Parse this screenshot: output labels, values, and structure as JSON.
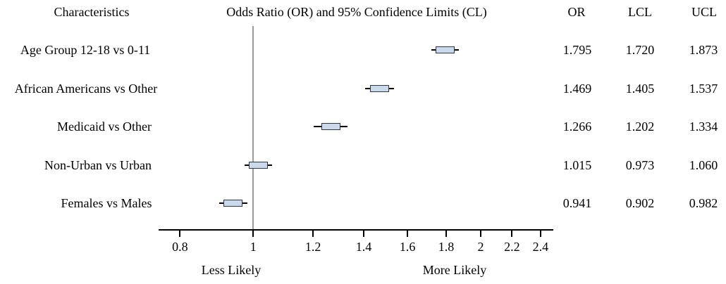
{
  "header": {
    "characteristics": "Characteristics",
    "plot_title": "Odds Ratio (OR) and 95% Confidence Limits (CL)",
    "columns": {
      "or": "OR",
      "lcl": "LCL",
      "ucl": "UCL"
    }
  },
  "chart_data": {
    "type": "forest",
    "x_scale": "log",
    "x_ticks": [
      "0.8",
      "1",
      "1.2",
      "1.4",
      "1.6",
      "1.8",
      "2",
      "2.2",
      "2.4"
    ],
    "xlim": [
      0.72,
      2.55
    ],
    "reference_line": 1,
    "grid": false,
    "annotations": {
      "left": "Less Likely",
      "right": "More Likely"
    },
    "rows": [
      {
        "label": "Age Group 12-18 vs 0-11",
        "or": 1.795,
        "lcl": 1.72,
        "ucl": 1.873,
        "display": {
          "or": "1.795",
          "lcl": "1.720",
          "ucl": "1.873"
        }
      },
      {
        "label": "African Americans vs Other",
        "or": 1.469,
        "lcl": 1.405,
        "ucl": 1.537,
        "display": {
          "or": "1.469",
          "lcl": "1.405",
          "ucl": "1.537"
        }
      },
      {
        "label": "Medicaid vs Other",
        "or": 1.266,
        "lcl": 1.202,
        "ucl": 1.334,
        "display": {
          "or": "1.266",
          "lcl": "1.202",
          "ucl": "1.334"
        }
      },
      {
        "label": "Non-Urban vs Urban",
        "or": 1.015,
        "lcl": 0.973,
        "ucl": 1.06,
        "display": {
          "or": "1.015",
          "lcl": "0.973",
          "ucl": "1.060"
        }
      },
      {
        "label": "Females vs Males",
        "or": 0.941,
        "lcl": 0.902,
        "ucl": 0.982,
        "display": {
          "or": "0.941",
          "lcl": "0.902",
          "ucl": "0.982"
        }
      }
    ]
  },
  "colors": {
    "box_fill": "#cbd9eb",
    "box_border": "#2f3640",
    "whisker": "#000000",
    "reference_line": "#9c9c9c",
    "axis": "#000000"
  }
}
